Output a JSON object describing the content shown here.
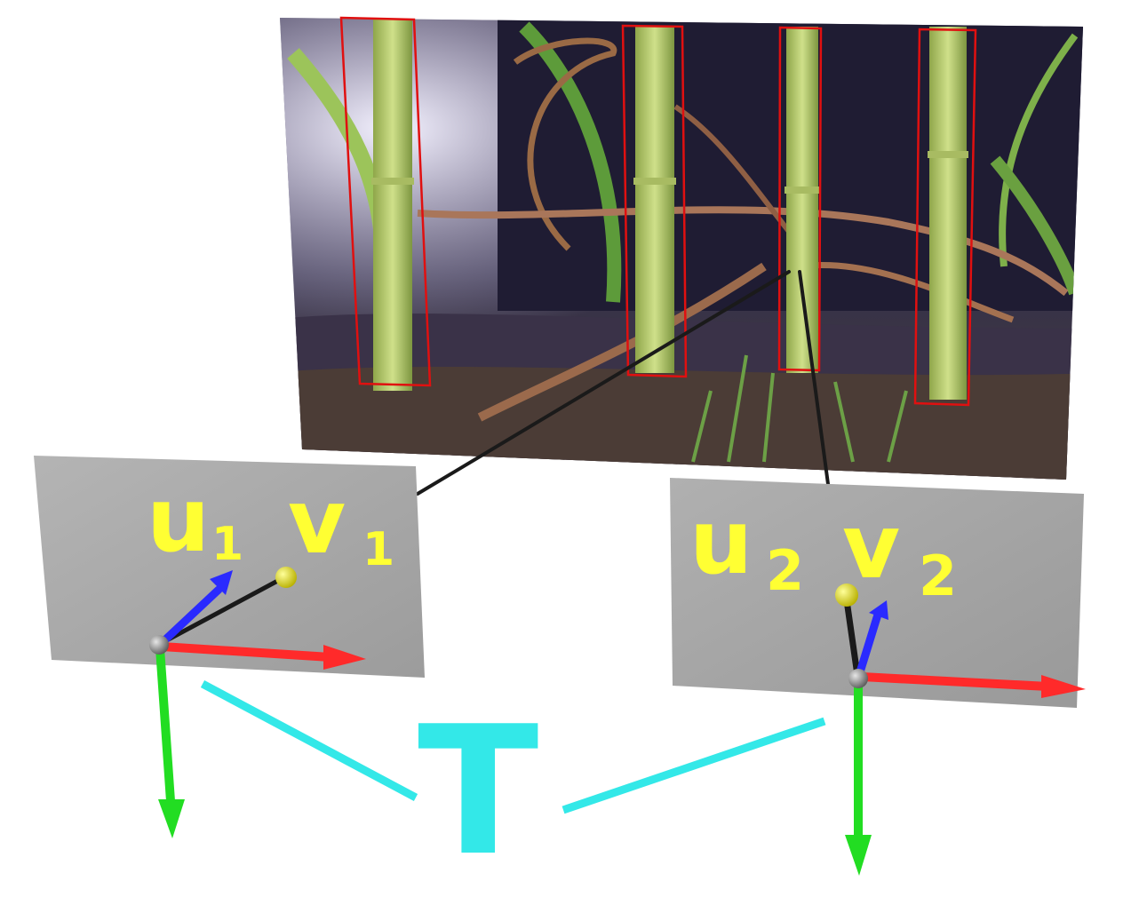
{
  "labels": {
    "left_u": "u",
    "left_u_sub": "1",
    "left_v": "v",
    "left_v_sub": "1",
    "right_u": "u",
    "right_u_sub": "2",
    "right_v": "v",
    "right_v_sub": "2",
    "translation": "T"
  },
  "colors": {
    "label_yellow": "#ffff33",
    "translation_cyan": "#33e8e8",
    "axis_x": "#ff2a2a",
    "axis_y": "#22dd22",
    "axis_z": "#2a2aff",
    "image_plane": "#a9a9a9",
    "detection_box": "#e01010",
    "projection_ray": "#1a1a1a"
  },
  "icons": {
    "origin": "gray-sphere-icon",
    "projected_point": "yellow-sphere-icon"
  }
}
